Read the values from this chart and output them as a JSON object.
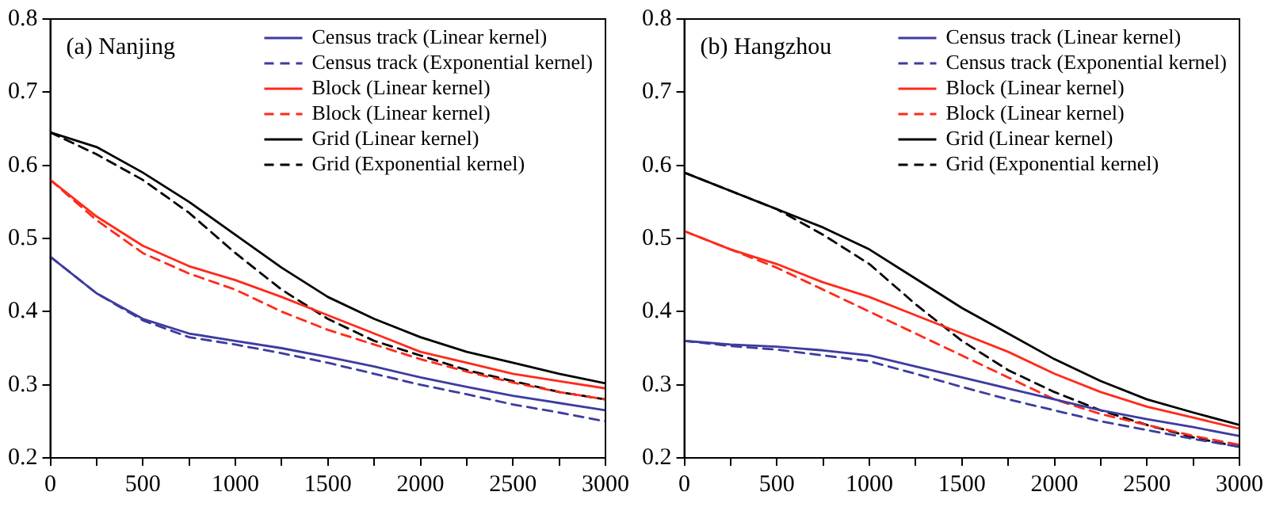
{
  "chart_data": [
    {
      "type": "line",
      "title": "(a) Nanjing",
      "legend": "top right",
      "grid": false,
      "marker": "none",
      "x": [
        0,
        250,
        500,
        750,
        1000,
        1250,
        1500,
        1750,
        2000,
        2250,
        2500,
        2750,
        3000
      ],
      "xlim": [
        0,
        3000
      ],
      "ylim": [
        0.2,
        0.8
      ],
      "xticks": [
        0,
        {
          "value": 250,
          "label": null
        },
        500,
        {
          "value": 750,
          "label": null
        },
        1000,
        {
          "value": 1250,
          "label": null
        },
        1500,
        {
          "value": 1750,
          "label": null
        },
        2000,
        {
          "value": 2250,
          "label": null
        },
        2500,
        {
          "value": 2750,
          "label": null
        },
        3000
      ],
      "yticks": [
        0.2,
        0.3,
        0.4,
        0.5,
        0.6,
        0.7,
        0.8
      ],
      "series": [
        {
          "name": "Census track (Linear kernel)",
          "color": "#3c3ca0",
          "line_style": "solid",
          "values": [
            0.475,
            0.425,
            0.39,
            0.37,
            0.36,
            0.35,
            0.338,
            0.325,
            0.31,
            0.297,
            0.285,
            0.275,
            0.265
          ]
        },
        {
          "name": "Census track (Exponential kernel)",
          "color": "#3c3ca0",
          "line_style": "dashed",
          "values": [
            0.475,
            0.425,
            0.388,
            0.365,
            0.355,
            0.343,
            0.33,
            0.315,
            0.3,
            0.287,
            0.273,
            0.262,
            0.25
          ]
        },
        {
          "name": "Block (Linear kernel)",
          "color": "#ff2a1a",
          "line_style": "solid",
          "values": [
            0.58,
            0.53,
            0.49,
            0.462,
            0.443,
            0.42,
            0.395,
            0.37,
            0.345,
            0.33,
            0.315,
            0.305,
            0.295
          ]
        },
        {
          "name": "Block (Linear kernel)",
          "color": "#ff2a1a",
          "line_style": "dashed",
          "values": [
            0.58,
            0.525,
            0.48,
            0.452,
            0.43,
            0.4,
            0.375,
            0.355,
            0.335,
            0.318,
            0.303,
            0.29,
            0.28
          ]
        },
        {
          "name": "Grid (Linear kernel)",
          "color": "#000000",
          "line_style": "solid",
          "values": [
            0.645,
            0.625,
            0.59,
            0.55,
            0.505,
            0.46,
            0.42,
            0.39,
            0.365,
            0.345,
            0.33,
            0.315,
            0.302
          ]
        },
        {
          "name": "Grid (Exponential kernel)",
          "color": "#000000",
          "line_style": "dashed",
          "values": [
            0.645,
            0.615,
            0.58,
            0.535,
            0.48,
            0.43,
            0.39,
            0.36,
            0.34,
            0.32,
            0.305,
            0.29,
            0.28
          ]
        }
      ]
    },
    {
      "type": "line",
      "title": "(b) Hangzhou",
      "legend": "top right",
      "grid": false,
      "marker": "none",
      "x": [
        0,
        250,
        500,
        750,
        1000,
        1250,
        1500,
        1750,
        2000,
        2250,
        2500,
        2750,
        3000
      ],
      "xlim": [
        0,
        3000
      ],
      "ylim": [
        0.2,
        0.8
      ],
      "xticks": [
        0,
        {
          "value": 250,
          "label": null
        },
        500,
        {
          "value": 750,
          "label": null
        },
        1000,
        {
          "value": 1250,
          "label": null
        },
        1500,
        {
          "value": 1750,
          "label": null
        },
        2000,
        {
          "value": 2250,
          "label": null
        },
        2500,
        {
          "value": 2750,
          "label": null
        },
        3000
      ],
      "yticks": [
        0.2,
        0.3,
        0.4,
        0.5,
        0.6,
        0.7,
        0.8
      ],
      "series": [
        {
          "name": "Census track (Linear kernel)",
          "color": "#3c3ca0",
          "line_style": "solid",
          "values": [
            0.36,
            0.355,
            0.352,
            0.347,
            0.34,
            0.325,
            0.31,
            0.295,
            0.28,
            0.265,
            0.253,
            0.242,
            0.23
          ]
        },
        {
          "name": "Census track (Exponential kernel)",
          "color": "#3c3ca0",
          "line_style": "dashed",
          "values": [
            0.36,
            0.353,
            0.348,
            0.34,
            0.332,
            0.315,
            0.297,
            0.28,
            0.265,
            0.25,
            0.238,
            0.226,
            0.215
          ]
        },
        {
          "name": "Block (Linear kernel)",
          "color": "#ff2a1a",
          "line_style": "solid",
          "values": [
            0.51,
            0.485,
            0.465,
            0.44,
            0.42,
            0.395,
            0.37,
            0.345,
            0.315,
            0.29,
            0.27,
            0.255,
            0.24
          ]
        },
        {
          "name": "Block (Linear kernel)",
          "color": "#ff2a1a",
          "line_style": "dashed",
          "values": [
            0.51,
            0.485,
            0.46,
            0.43,
            0.4,
            0.37,
            0.34,
            0.31,
            0.28,
            0.26,
            0.245,
            0.23,
            0.218
          ]
        },
        {
          "name": "Grid (Linear kernel)",
          "color": "#000000",
          "line_style": "solid",
          "values": [
            0.59,
            0.565,
            0.54,
            0.515,
            0.485,
            0.445,
            0.405,
            0.37,
            0.335,
            0.305,
            0.28,
            0.262,
            0.245
          ]
        },
        {
          "name": "Grid (Exponential kernel)",
          "color": "#000000",
          "line_style": "dashed",
          "values": [
            0.59,
            0.565,
            0.54,
            0.505,
            0.465,
            0.41,
            0.36,
            0.32,
            0.29,
            0.265,
            0.245,
            0.228,
            0.215
          ]
        }
      ]
    }
  ]
}
